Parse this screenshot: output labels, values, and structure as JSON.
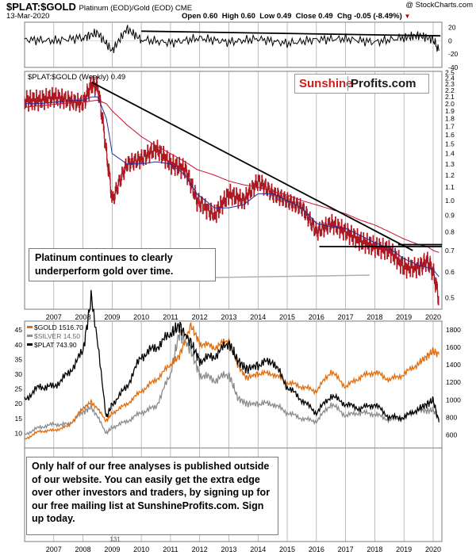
{
  "header": {
    "symbol": "$PLAT:$GOLD",
    "subtitle": "Platinum (EOD)/Gold (EOD) CME",
    "credit": "@ StockCharts.com",
    "date": "13-Mar-2020",
    "quote": {
      "open_label": "Open",
      "open": "0.60",
      "high_label": "High",
      "high": "0.60",
      "low_label": "Low",
      "low": "0.49",
      "close_label": "Close",
      "close": "0.49",
      "chg_label": "Chg",
      "chg": "-0.05 (-8.49%)",
      "down_marker": "▼"
    }
  },
  "logo": {
    "part1": "Sunshine",
    "part2": "Profits.com",
    "color1": "#d21c1c",
    "color2": "#1a1a1a"
  },
  "annotations": {
    "note1": "Platinum continues to clearly underperform gold over time.",
    "note2": "Only half of our free analyses is published outside of our website. You can easily get the extra edge over other investors and traders, by signing up for our free mailing list at SunshineProfits.com. Sign up today.",
    "bottom_tick": "131"
  },
  "colors": {
    "ratio_bars": "#b0141e",
    "ma_short": "#1f2fa0",
    "ma_long": "#c8102e",
    "trendline": "#000000",
    "gold": "#e36c0a",
    "silver": "#8c8c8c",
    "platinum": "#000000",
    "year_grid": "#a0a0a0"
  },
  "x_years": [
    "2007",
    "2008",
    "2009",
    "2010",
    "2011",
    "2012",
    "2013",
    "2014",
    "2015",
    "2016",
    "2017",
    "2018",
    "2019",
    "2020"
  ],
  "chart_data": [
    {
      "type": "line",
      "panel": "momentum",
      "x": [
        2006.0,
        2007.0,
        2008.0,
        2008.5,
        2009.0,
        2009.5,
        2010.0,
        2011.0,
        2012.0,
        2013.0,
        2014.0,
        2015.0,
        2016.0,
        2017.0,
        2018.0,
        2019.0,
        2019.5,
        2020.0,
        2020.2
      ],
      "series": [
        {
          "values": [
            2,
            0,
            5,
            12,
            -15,
            18,
            2,
            -3,
            4,
            -2,
            3,
            -4,
            2,
            3,
            -2,
            5,
            8,
            2,
            -15
          ]
        }
      ],
      "trendline": {
        "x": [
          2010.0,
          2020.25
        ],
        "y": [
          14.5,
          7.5
        ]
      },
      "ylim": [
        -40,
        28
      ],
      "yticks": [
        20,
        0,
        -20,
        -40
      ]
    },
    {
      "type": "bar",
      "panel": "ratio",
      "title": "$PLAT:$GOLD (Weekly) 0.49",
      "x": [
        2006.0,
        2006.5,
        2007.0,
        2007.5,
        2008.0,
        2008.3,
        2008.5,
        2008.8,
        2009.0,
        2009.5,
        2010.0,
        2010.5,
        2011.0,
        2011.5,
        2011.9,
        2012.5,
        2013.0,
        2013.5,
        2014.0,
        2014.5,
        2015.0,
        2015.5,
        2016.0,
        2016.5,
        2017.0,
        2017.5,
        2018.0,
        2018.5,
        2019.0,
        2019.5,
        2019.8,
        2020.0,
        2020.2
      ],
      "series": [
        {
          "name": "$PLAT:$GOLD",
          "values": [
            2.05,
            2.05,
            2.1,
            2.05,
            2.0,
            2.3,
            2.25,
            1.4,
            1.0,
            1.3,
            1.35,
            1.45,
            1.3,
            1.25,
            1.0,
            0.9,
            1.05,
            1.0,
            1.15,
            1.05,
            1.0,
            0.95,
            0.8,
            0.85,
            0.8,
            0.75,
            0.72,
            0.7,
            0.62,
            0.62,
            0.65,
            0.6,
            0.49
          ]
        },
        {
          "name": "MA short",
          "values": [
            2.0,
            2.0,
            2.02,
            2.04,
            2.05,
            2.1,
            2.1,
            1.8,
            1.4,
            1.3,
            1.3,
            1.32,
            1.3,
            1.2,
            1.05,
            0.95,
            0.95,
            0.97,
            1.05,
            1.05,
            1.0,
            0.95,
            0.85,
            0.83,
            0.82,
            0.78,
            0.74,
            0.71,
            0.66,
            0.63,
            0.62,
            0.61,
            0.58
          ]
        },
        {
          "name": "MA long",
          "values": [
            1.95,
            1.97,
            1.99,
            2.01,
            2.02,
            2.04,
            2.05,
            2.0,
            1.9,
            1.72,
            1.58,
            1.48,
            1.4,
            1.32,
            1.25,
            1.2,
            1.15,
            1.12,
            1.1,
            1.07,
            1.04,
            1.0,
            0.97,
            0.94,
            0.91,
            0.87,
            0.84,
            0.8,
            0.76,
            0.73,
            0.72,
            0.7,
            0.69
          ]
        }
      ],
      "trendlines": [
        {
          "x": [
            2008.3,
            2019.3
          ],
          "y": [
            2.33,
            0.7
          ]
        },
        {
          "x": [
            2016.1,
            2020.3
          ],
          "y": [
            0.72,
            0.72
          ]
        },
        {
          "x": [
            2018.8,
            2020.3
          ],
          "y": [
            0.73,
            0.73
          ]
        }
      ],
      "ylim": [
        0.46,
        2.52
      ],
      "ylog": true,
      "yticks": [
        "0.5",
        "0.6",
        "0.7",
        "0.8",
        "0.9",
        "1.0",
        "1.1",
        "1.2",
        "1.3",
        "1.4",
        "1.5",
        "1.6",
        "1.7",
        "1.8",
        "1.9",
        "2.0",
        "2.1",
        "2.2",
        "2.3",
        "2.4",
        "2.5"
      ]
    },
    {
      "type": "line",
      "panel": "metals",
      "x": [
        2006.0,
        2006.5,
        2007.0,
        2007.5,
        2008.0,
        2008.3,
        2008.8,
        2009.0,
        2009.5,
        2010.0,
        2010.5,
        2011.0,
        2011.3,
        2011.7,
        2012.0,
        2012.5,
        2013.0,
        2013.3,
        2013.6,
        2014.0,
        2014.5,
        2015.0,
        2015.5,
        2016.0,
        2016.5,
        2017.0,
        2017.5,
        2018.0,
        2018.5,
        2019.0,
        2019.5,
        2019.8,
        2020.0,
        2020.2
      ],
      "series": [
        {
          "name": "$GOLD 1516.70",
          "values": [
            550,
            640,
            650,
            700,
            900,
            980,
            760,
            850,
            950,
            1100,
            1230,
            1400,
            1500,
            1850,
            1650,
            1600,
            1680,
            1400,
            1250,
            1300,
            1300,
            1200,
            1150,
            1100,
            1330,
            1150,
            1260,
            1320,
            1230,
            1290,
            1420,
            1500,
            1560,
            1516.7
          ]
        },
        {
          "name": "$SILVER 14.50",
          "values": [
            9.5,
            12,
            13,
            13,
            17,
            19,
            10,
            12,
            14,
            17,
            19,
            30,
            44,
            38,
            30,
            28,
            30,
            22,
            20,
            20,
            20,
            17,
            15,
            14,
            20,
            16,
            17,
            16.5,
            14.5,
            15,
            18,
            17.5,
            18,
            14.5
          ]
        },
        {
          "name": "$PLAT 743.90",
          "values": [
            1000,
            1150,
            1150,
            1300,
            1550,
            2200,
            800,
            950,
            1150,
            1500,
            1600,
            1750,
            1850,
            1650,
            1450,
            1500,
            1650,
            1450,
            1350,
            1400,
            1450,
            1150,
            1000,
            850,
            1050,
            950,
            900,
            950,
            800,
            800,
            900,
            950,
            1000,
            743.9
          ]
        }
      ],
      "y_left": {
        "series": "$SILVER 14.50",
        "ylim": [
          5,
          48
        ],
        "ticks": [
          "10",
          "15",
          "20",
          "25",
          "30",
          "35",
          "40",
          "45"
        ]
      },
      "y_right": {
        "series": [
          "$GOLD 1516.70",
          "$PLAT 743.90"
        ],
        "ylim": [
          450,
          1900
        ],
        "ticks": [
          "600",
          "800",
          "1000",
          "1200",
          "1400",
          "1600",
          "1800"
        ]
      },
      "legend": "top-left"
    }
  ]
}
